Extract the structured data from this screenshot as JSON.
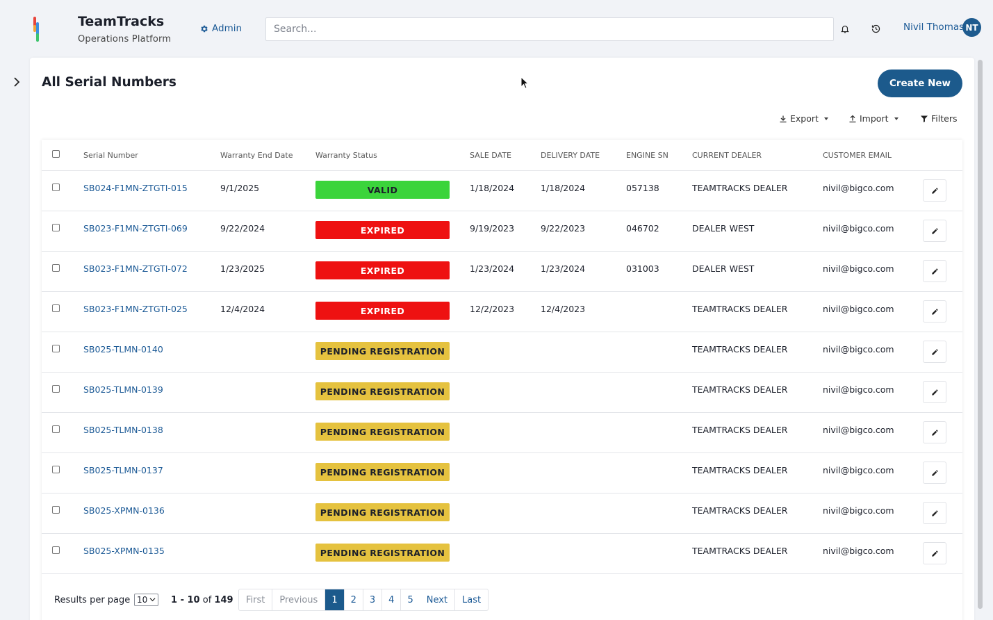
{
  "app": {
    "name": "TeamTracks",
    "subtitle": "Operations Platform",
    "admin_label": "Admin"
  },
  "search": {
    "placeholder": "Search..."
  },
  "user": {
    "name": "Nivil Thomas",
    "initials": "NT"
  },
  "page": {
    "title": "All Serial Numbers",
    "create_label": "Create New",
    "export_label": "Export",
    "import_label": "Import",
    "filters_label": "Filters"
  },
  "table": {
    "columns": {
      "serial": "Serial Number",
      "warranty_end": "Warranty End Date",
      "warranty_status": "Warranty Status",
      "sale_date": "SALE DATE",
      "delivery_date": "DELIVERY DATE",
      "engine_sn": "ENGINE SN",
      "dealer": "CURRENT DEALER",
      "email": "CUSTOMER EMAIL"
    },
    "rows": [
      {
        "serial": "SB024-F1MN-ZTGTI-015",
        "warranty_end": "9/1/2025",
        "status": "VALID",
        "sale_date": "1/18/2024",
        "delivery_date": "1/18/2024",
        "engine_sn": "057138",
        "dealer": "TEAMTRACKS DEALER",
        "email": "nivil@bigco.com"
      },
      {
        "serial": "SB023-F1MN-ZTGTI-069",
        "warranty_end": "9/22/2024",
        "status": "EXPIRED",
        "sale_date": "9/19/2023",
        "delivery_date": "9/22/2023",
        "engine_sn": "046702",
        "dealer": "DEALER WEST",
        "email": "nivil@bigco.com"
      },
      {
        "serial": "SB023-F1MN-ZTGTI-072",
        "warranty_end": "1/23/2025",
        "status": "EXPIRED",
        "sale_date": "1/23/2024",
        "delivery_date": "1/23/2024",
        "engine_sn": "031003",
        "dealer": "DEALER WEST",
        "email": "nivil@bigco.com"
      },
      {
        "serial": "SB023-F1MN-ZTGTI-025",
        "warranty_end": "12/4/2024",
        "status": "EXPIRED",
        "sale_date": "12/2/2023",
        "delivery_date": "12/4/2023",
        "engine_sn": "",
        "dealer": "TEAMTRACKS DEALER",
        "email": "nivil@bigco.com"
      },
      {
        "serial": "SB025-TLMN-0140",
        "warranty_end": "",
        "status": "PENDING REGISTRATION",
        "sale_date": "",
        "delivery_date": "",
        "engine_sn": "",
        "dealer": "TEAMTRACKS DEALER",
        "email": "nivil@bigco.com"
      },
      {
        "serial": "SB025-TLMN-0139",
        "warranty_end": "",
        "status": "PENDING REGISTRATION",
        "sale_date": "",
        "delivery_date": "",
        "engine_sn": "",
        "dealer": "TEAMTRACKS DEALER",
        "email": "nivil@bigco.com"
      },
      {
        "serial": "SB025-TLMN-0138",
        "warranty_end": "",
        "status": "PENDING REGISTRATION",
        "sale_date": "",
        "delivery_date": "",
        "engine_sn": "",
        "dealer": "TEAMTRACKS DEALER",
        "email": "nivil@bigco.com"
      },
      {
        "serial": "SB025-TLMN-0137",
        "warranty_end": "",
        "status": "PENDING REGISTRATION",
        "sale_date": "",
        "delivery_date": "",
        "engine_sn": "",
        "dealer": "TEAMTRACKS DEALER",
        "email": "nivil@bigco.com"
      },
      {
        "serial": "SB025-XPMN-0136",
        "warranty_end": "",
        "status": "PENDING REGISTRATION",
        "sale_date": "",
        "delivery_date": "",
        "engine_sn": "",
        "dealer": "TEAMTRACKS DEALER",
        "email": "nivil@bigco.com"
      },
      {
        "serial": "SB025-XPMN-0135",
        "warranty_end": "",
        "status": "PENDING REGISTRATION",
        "sale_date": "",
        "delivery_date": "",
        "engine_sn": "",
        "dealer": "TEAMTRACKS DEALER",
        "email": "nivil@bigco.com"
      }
    ]
  },
  "status_colors": {
    "VALID": {
      "bg": "#3bd43b",
      "fg": "#1b1f2a"
    },
    "EXPIRED": {
      "bg": "#ee1111",
      "fg": "#ffffff"
    },
    "PENDING REGISTRATION": {
      "bg": "#e5c23f",
      "fg": "#1b1f2a"
    }
  },
  "pagination": {
    "results_per_page_label": "Results per page",
    "per_page_value": "10",
    "range_start_end": "1 - 10",
    "range_of": "of",
    "total": "149",
    "first": "First",
    "previous": "Previous",
    "pages": [
      "1",
      "2",
      "3",
      "4",
      "5"
    ],
    "active_page": "1",
    "next": "Next",
    "last": "Last"
  },
  "icons": {
    "admin": "gear-icon",
    "notifications": "bell-icon",
    "history": "history-icon",
    "sidebar": "chevron-right-icon",
    "edit": "pencil-icon",
    "export": "download-icon",
    "import": "upload-icon",
    "filters": "filter-icon"
  },
  "accent_color": "#1c5a8c"
}
